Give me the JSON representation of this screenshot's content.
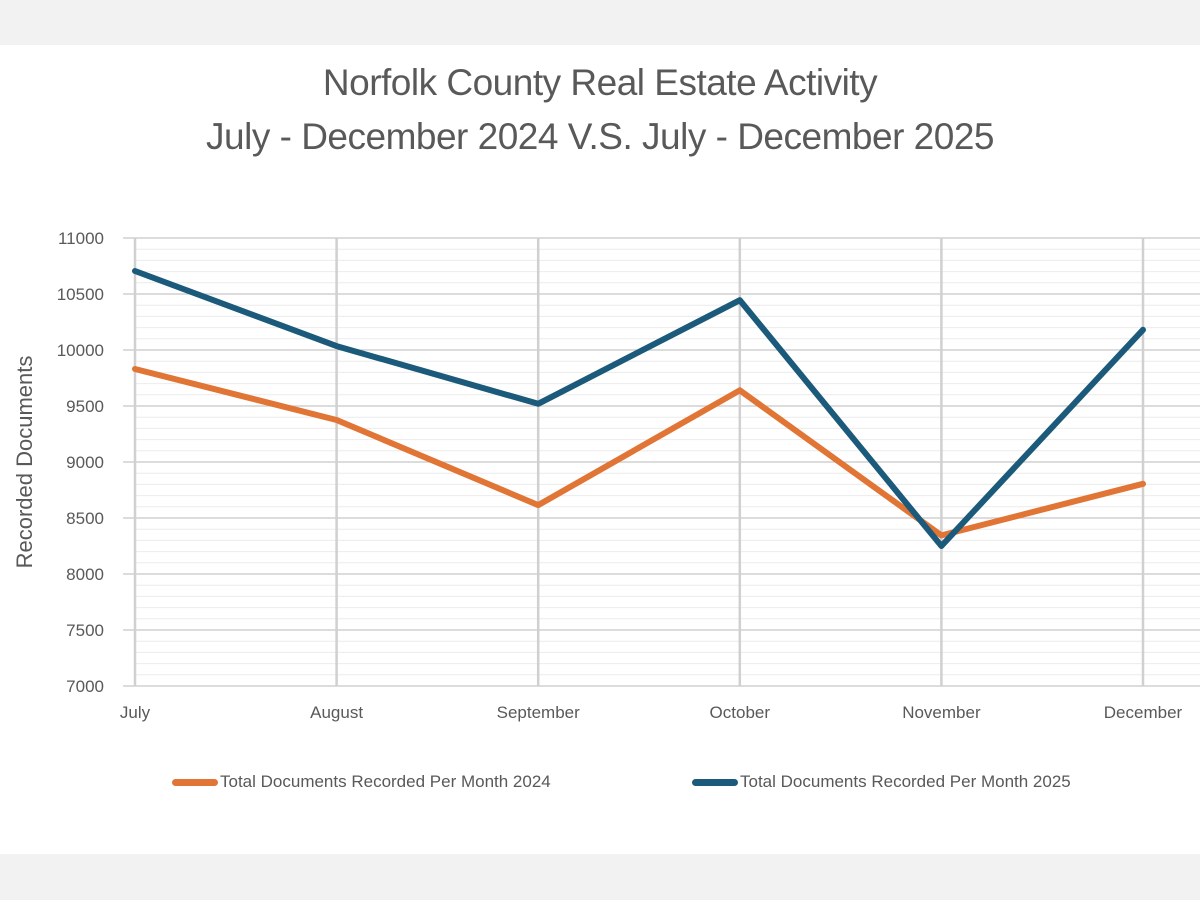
{
  "colors": {
    "series_2024": "#e07535",
    "series_2025": "#1b5a7a",
    "grid_major": "#c8c8c8",
    "grid_minor": "#ebebeb",
    "text": "#595959",
    "page_bg": "#f2f2f2",
    "card_bg": "#ffffff"
  },
  "chart_data": {
    "type": "line",
    "title": "Norfolk County Real Estate Activity",
    "subtitle": "July - December 2024 V.S. July - December 2025",
    "xlabel": "",
    "ylabel": "Recorded Documents",
    "categories": [
      "July",
      "August",
      "September",
      "October",
      "November",
      "December"
    ],
    "ylim": [
      7000,
      11000
    ],
    "yticks": [
      7000,
      7500,
      8000,
      8500,
      9000,
      9500,
      10000,
      10500,
      11000
    ],
    "minor_grid_step": 100,
    "grid": true,
    "legend_position": "bottom",
    "series": [
      {
        "name": "Total Documents Recorded Per Month 2024",
        "color": "#e07535",
        "values": [
          9830,
          9375,
          8615,
          9640,
          8345,
          8805
        ]
      },
      {
        "name": "Total Documents Recorded Per Month 2025",
        "color": "#1b5a7a",
        "values": [
          10705,
          10035,
          9520,
          10445,
          8250,
          10180
        ]
      }
    ]
  }
}
